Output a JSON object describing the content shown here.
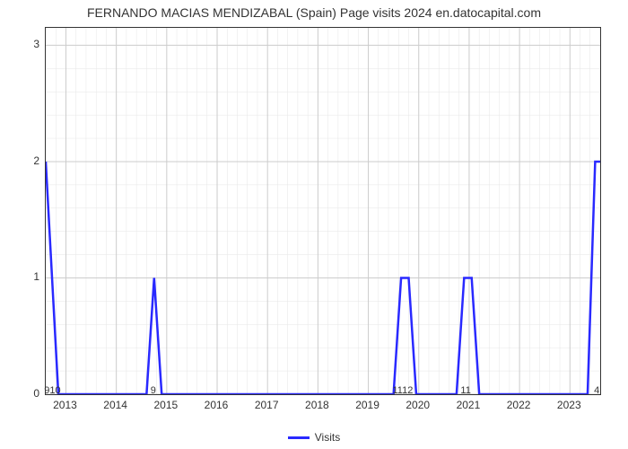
{
  "chart": {
    "type": "line",
    "title": "FERNANDO MACIAS MENDIZABAL (Spain) Page visits 2024 en.datocapital.com",
    "title_fontsize": 14,
    "background_color": "#ffffff",
    "plot_border_color": "#333333",
    "grid_major_color": "#cccccc",
    "grid_minor_color": "#e6e6e6",
    "line_color": "#2929ff",
    "line_width": 2.5,
    "xlim": [
      2012.6,
      2023.6
    ],
    "ylim": [
      0,
      3.15
    ],
    "y_ticks": [
      0,
      1,
      2,
      3
    ],
    "x_ticks": [
      2013,
      2014,
      2015,
      2016,
      2017,
      2018,
      2019,
      2020,
      2021,
      2022,
      2023
    ],
    "minor_x_count": 4,
    "minor_y_count": 4,
    "legend": {
      "label": "Visits",
      "color": "#2929ff"
    },
    "count_labels": [
      {
        "x": 2012.75,
        "text": "910"
      },
      {
        "x": 2014.75,
        "text": "9"
      },
      {
        "x": 2019.7,
        "text": "1112"
      },
      {
        "x": 2020.95,
        "text": "11"
      },
      {
        "x": 2023.55,
        "text": "4"
      }
    ],
    "series": [
      {
        "x": 2012.6,
        "y": 2.0
      },
      {
        "x": 2012.85,
        "y": 0.0
      },
      {
        "x": 2014.6,
        "y": 0.0
      },
      {
        "x": 2014.75,
        "y": 1.0
      },
      {
        "x": 2014.9,
        "y": 0.0
      },
      {
        "x": 2019.5,
        "y": 0.0
      },
      {
        "x": 2019.65,
        "y": 1.0
      },
      {
        "x": 2019.8,
        "y": 1.0
      },
      {
        "x": 2019.95,
        "y": 0.0
      },
      {
        "x": 2020.75,
        "y": 0.0
      },
      {
        "x": 2020.9,
        "y": 1.0
      },
      {
        "x": 2021.05,
        "y": 1.0
      },
      {
        "x": 2021.2,
        "y": 0.0
      },
      {
        "x": 2023.35,
        "y": 0.0
      },
      {
        "x": 2023.5,
        "y": 2.0
      },
      {
        "x": 2023.6,
        "y": 2.0
      }
    ]
  }
}
